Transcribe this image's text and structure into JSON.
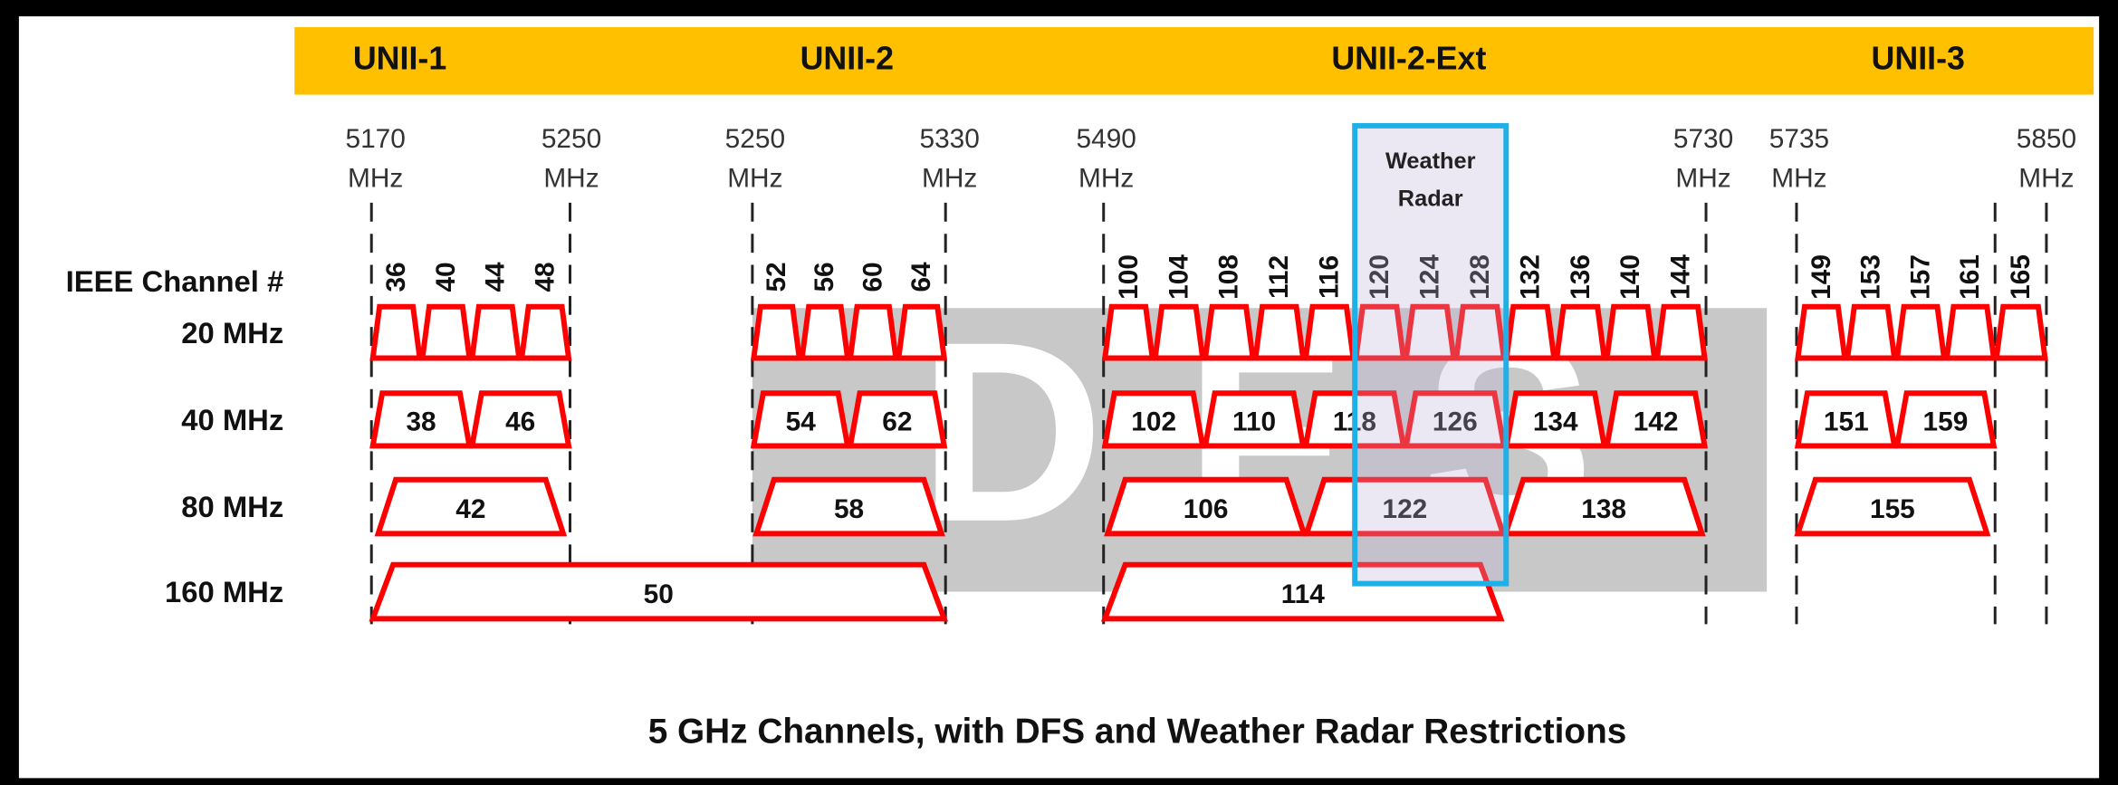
{
  "bands": [
    "UNII-1",
    "UNII-2",
    "UNII-2-Ext",
    "UNII-3"
  ],
  "frequencies": [
    {
      "value": "5170",
      "unit": "MHz"
    },
    {
      "value": "5250",
      "unit": "MHz"
    },
    {
      "value": "5250",
      "unit": "MHz"
    },
    {
      "value": "5330",
      "unit": "MHz"
    },
    {
      "value": "5490",
      "unit": "MHz"
    },
    {
      "value": "5730",
      "unit": "MHz"
    },
    {
      "value": "5735",
      "unit": "MHz"
    },
    {
      "value": "5850",
      "unit": "MHz"
    }
  ],
  "channel_header": "IEEE Channel #",
  "rows": [
    {
      "label": "20 MHz",
      "groups": [
        [
          36,
          40,
          44,
          48
        ],
        [
          52,
          56,
          60,
          64
        ],
        [
          100,
          104,
          108,
          112,
          116,
          120,
          124,
          128,
          132,
          136,
          140,
          144
        ],
        [
          149,
          153,
          157,
          161
        ],
        [
          165
        ]
      ]
    },
    {
      "label": "40 MHz",
      "groups": [
        [
          38,
          46
        ],
        [
          54,
          62
        ],
        [
          102,
          110,
          118,
          126,
          134,
          142
        ],
        [
          151,
          159
        ]
      ]
    },
    {
      "label": "80 MHz",
      "groups": [
        [
          42
        ],
        [
          58
        ],
        [
          106,
          122,
          138
        ],
        [
          155
        ]
      ]
    },
    {
      "label": "160 MHz",
      "groups": [
        [
          50
        ],
        [
          114
        ]
      ]
    }
  ],
  "weather_radar": [
    "Weather",
    "Radar"
  ],
  "watermark": "DFS",
  "caption": "5 GHz Channels, with DFS and Weather Radar Restrictions"
}
